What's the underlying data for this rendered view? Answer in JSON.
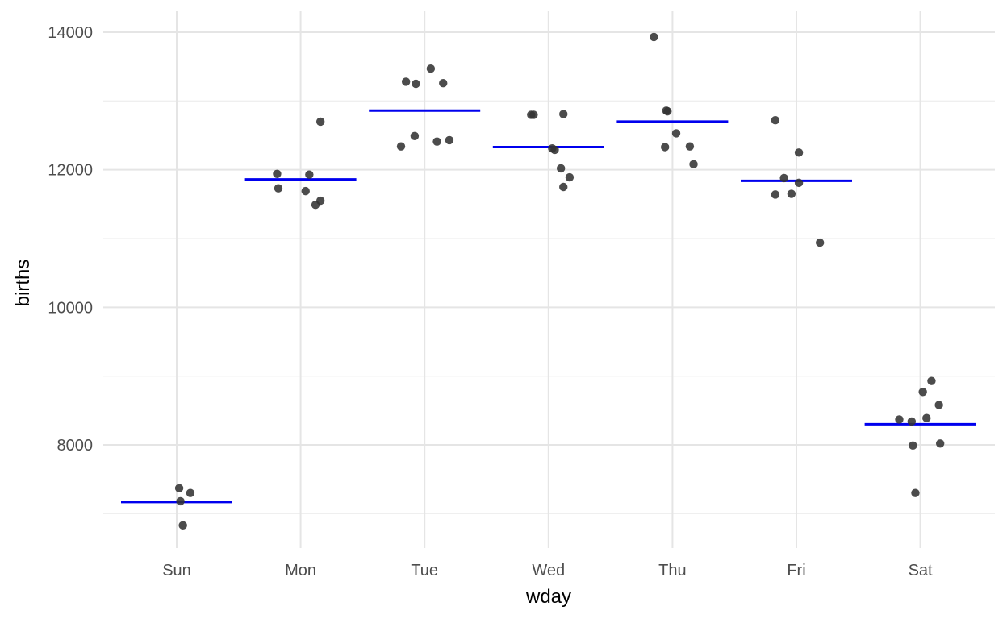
{
  "chart_data": {
    "type": "scatter",
    "xlabel": "wday",
    "ylabel": "births",
    "categories": [
      "Sun",
      "Mon",
      "Tue",
      "Wed",
      "Thu",
      "Fri",
      "Sat"
    ],
    "ylim": [
      6500,
      14300
    ],
    "y_ticks": [
      8000,
      10000,
      12000,
      14000
    ],
    "y_tick_labels": [
      "8000",
      "10000",
      "12000",
      "14000"
    ],
    "y_minor_ticks": [
      7000,
      9000,
      11000,
      13000
    ],
    "grid": true,
    "point_color": "#333333",
    "mean_color": "#0000ee",
    "points": [
      {
        "cat": "Sun",
        "offset": 0.02,
        "y": 7370
      },
      {
        "cat": "Sun",
        "offset": 0.11,
        "y": 7300
      },
      {
        "cat": "Sun",
        "offset": 0.03,
        "y": 7180
      },
      {
        "cat": "Sun",
        "offset": 0.05,
        "y": 6830
      },
      {
        "cat": "Mon",
        "offset": -0.19,
        "y": 11940
      },
      {
        "cat": "Mon",
        "offset": -0.18,
        "y": 11730
      },
      {
        "cat": "Mon",
        "offset": 0.07,
        "y": 11930
      },
      {
        "cat": "Mon",
        "offset": 0.16,
        "y": 12700
      },
      {
        "cat": "Mon",
        "offset": 0.04,
        "y": 11690
      },
      {
        "cat": "Mon",
        "offset": 0.16,
        "y": 11550
      },
      {
        "cat": "Mon",
        "offset": 0.12,
        "y": 11490
      },
      {
        "cat": "Tue",
        "offset": -0.15,
        "y": 13280
      },
      {
        "cat": "Tue",
        "offset": -0.07,
        "y": 13250
      },
      {
        "cat": "Tue",
        "offset": 0.05,
        "y": 13470
      },
      {
        "cat": "Tue",
        "offset": 0.15,
        "y": 13260
      },
      {
        "cat": "Tue",
        "offset": -0.19,
        "y": 12340
      },
      {
        "cat": "Tue",
        "offset": -0.08,
        "y": 12490
      },
      {
        "cat": "Tue",
        "offset": 0.1,
        "y": 12410
      },
      {
        "cat": "Tue",
        "offset": 0.2,
        "y": 12430
      },
      {
        "cat": "Wed",
        "offset": -0.14,
        "y": 12800
      },
      {
        "cat": "Wed",
        "offset": -0.12,
        "y": 12800
      },
      {
        "cat": "Wed",
        "offset": 0.12,
        "y": 12810
      },
      {
        "cat": "Wed",
        "offset": 0.03,
        "y": 12310
      },
      {
        "cat": "Wed",
        "offset": 0.05,
        "y": 12290
      },
      {
        "cat": "Wed",
        "offset": 0.1,
        "y": 12020
      },
      {
        "cat": "Wed",
        "offset": 0.17,
        "y": 11890
      },
      {
        "cat": "Wed",
        "offset": 0.12,
        "y": 11750
      },
      {
        "cat": "Thu",
        "offset": -0.15,
        "y": 13930
      },
      {
        "cat": "Thu",
        "offset": -0.05,
        "y": 12860
      },
      {
        "cat": "Thu",
        "offset": -0.04,
        "y": 12850
      },
      {
        "cat": "Thu",
        "offset": 0.03,
        "y": 12530
      },
      {
        "cat": "Thu",
        "offset": -0.06,
        "y": 12330
      },
      {
        "cat": "Thu",
        "offset": 0.14,
        "y": 12340
      },
      {
        "cat": "Thu",
        "offset": 0.17,
        "y": 12080
      },
      {
        "cat": "Fri",
        "offset": -0.17,
        "y": 12720
      },
      {
        "cat": "Fri",
        "offset": 0.02,
        "y": 12250
      },
      {
        "cat": "Fri",
        "offset": -0.1,
        "y": 11880
      },
      {
        "cat": "Fri",
        "offset": 0.02,
        "y": 11810
      },
      {
        "cat": "Fri",
        "offset": -0.17,
        "y": 11640
      },
      {
        "cat": "Fri",
        "offset": -0.04,
        "y": 11650
      },
      {
        "cat": "Fri",
        "offset": 0.19,
        "y": 10940
      },
      {
        "cat": "Sat",
        "offset": 0.09,
        "y": 8930
      },
      {
        "cat": "Sat",
        "offset": 0.02,
        "y": 8770
      },
      {
        "cat": "Sat",
        "offset": 0.15,
        "y": 8580
      },
      {
        "cat": "Sat",
        "offset": -0.17,
        "y": 8370
      },
      {
        "cat": "Sat",
        "offset": -0.07,
        "y": 8340
      },
      {
        "cat": "Sat",
        "offset": 0.05,
        "y": 8390
      },
      {
        "cat": "Sat",
        "offset": -0.06,
        "y": 7990
      },
      {
        "cat": "Sat",
        "offset": 0.16,
        "y": 8020
      },
      {
        "cat": "Sat",
        "offset": -0.04,
        "y": 7300
      }
    ],
    "means": [
      {
        "cat": "Sun",
        "y": 7170
      },
      {
        "cat": "Mon",
        "y": 11860
      },
      {
        "cat": "Tue",
        "y": 12860
      },
      {
        "cat": "Wed",
        "y": 12330
      },
      {
        "cat": "Thu",
        "y": 12700
      },
      {
        "cat": "Fri",
        "y": 11840
      },
      {
        "cat": "Sat",
        "y": 8300
      }
    ]
  }
}
